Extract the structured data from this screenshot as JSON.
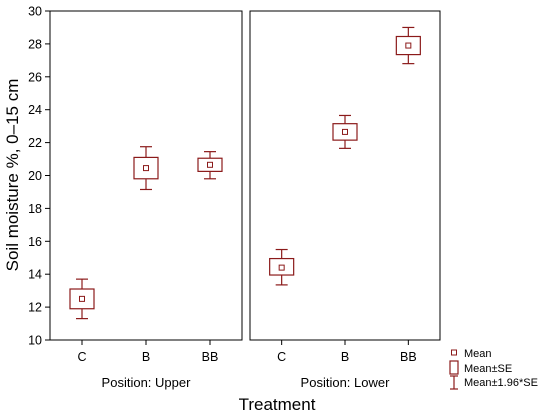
{
  "chart_data": {
    "type": "box",
    "ylabel": "Soil moisture %, 0–15 cm",
    "xlabel": "Treatment",
    "ylim": [
      10,
      30
    ],
    "yticks": [
      10,
      12,
      14,
      16,
      18,
      20,
      22,
      24,
      26,
      28,
      30
    ],
    "grid": false,
    "color": "#8b1a1a",
    "legend": {
      "position": "bottom-right",
      "entries": [
        "Mean",
        "Mean±SE",
        "Mean±1.96*SE"
      ]
    },
    "panels": [
      {
        "label": "Position: Upper",
        "categories": [
          "C",
          "B",
          "BB"
        ],
        "mean": [
          12.5,
          20.45,
          20.65
        ],
        "se_low": [
          11.9,
          19.8,
          20.25
        ],
        "se_high": [
          13.1,
          21.1,
          21.05
        ],
        "ci_low": [
          11.3,
          19.15,
          19.8
        ],
        "ci_high": [
          13.7,
          21.75,
          21.45
        ]
      },
      {
        "label": "Position: Lower",
        "categories": [
          "C",
          "B",
          "BB"
        ],
        "mean": [
          14.4,
          22.65,
          27.9
        ],
        "se_low": [
          13.95,
          22.15,
          27.35
        ],
        "se_high": [
          14.95,
          23.15,
          28.45
        ],
        "ci_low": [
          13.35,
          21.65,
          26.8
        ],
        "ci_high": [
          15.5,
          23.65,
          29.0
        ]
      }
    ]
  }
}
